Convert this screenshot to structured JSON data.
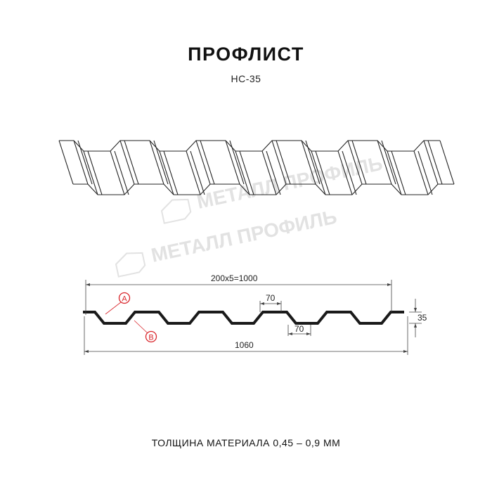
{
  "header": {
    "title": "ПРОФЛИСТ",
    "model": "НС-35"
  },
  "watermark": {
    "text": "МЕТАЛЛ ПРОФИЛЬ"
  },
  "drawing": {
    "pitch_label": "200x5=1000",
    "top_flange_label": "70",
    "bottom_flange_label": "70",
    "height_label": "35",
    "total_width_label": "1060",
    "marker_a": "A",
    "marker_b": "B",
    "marker_color": "#d9252b",
    "profile_color": "#1a1a1a"
  },
  "footer": {
    "thickness": "ТОЛЩИНА МАТЕРИАЛА 0,45 – 0,9 ММ"
  }
}
